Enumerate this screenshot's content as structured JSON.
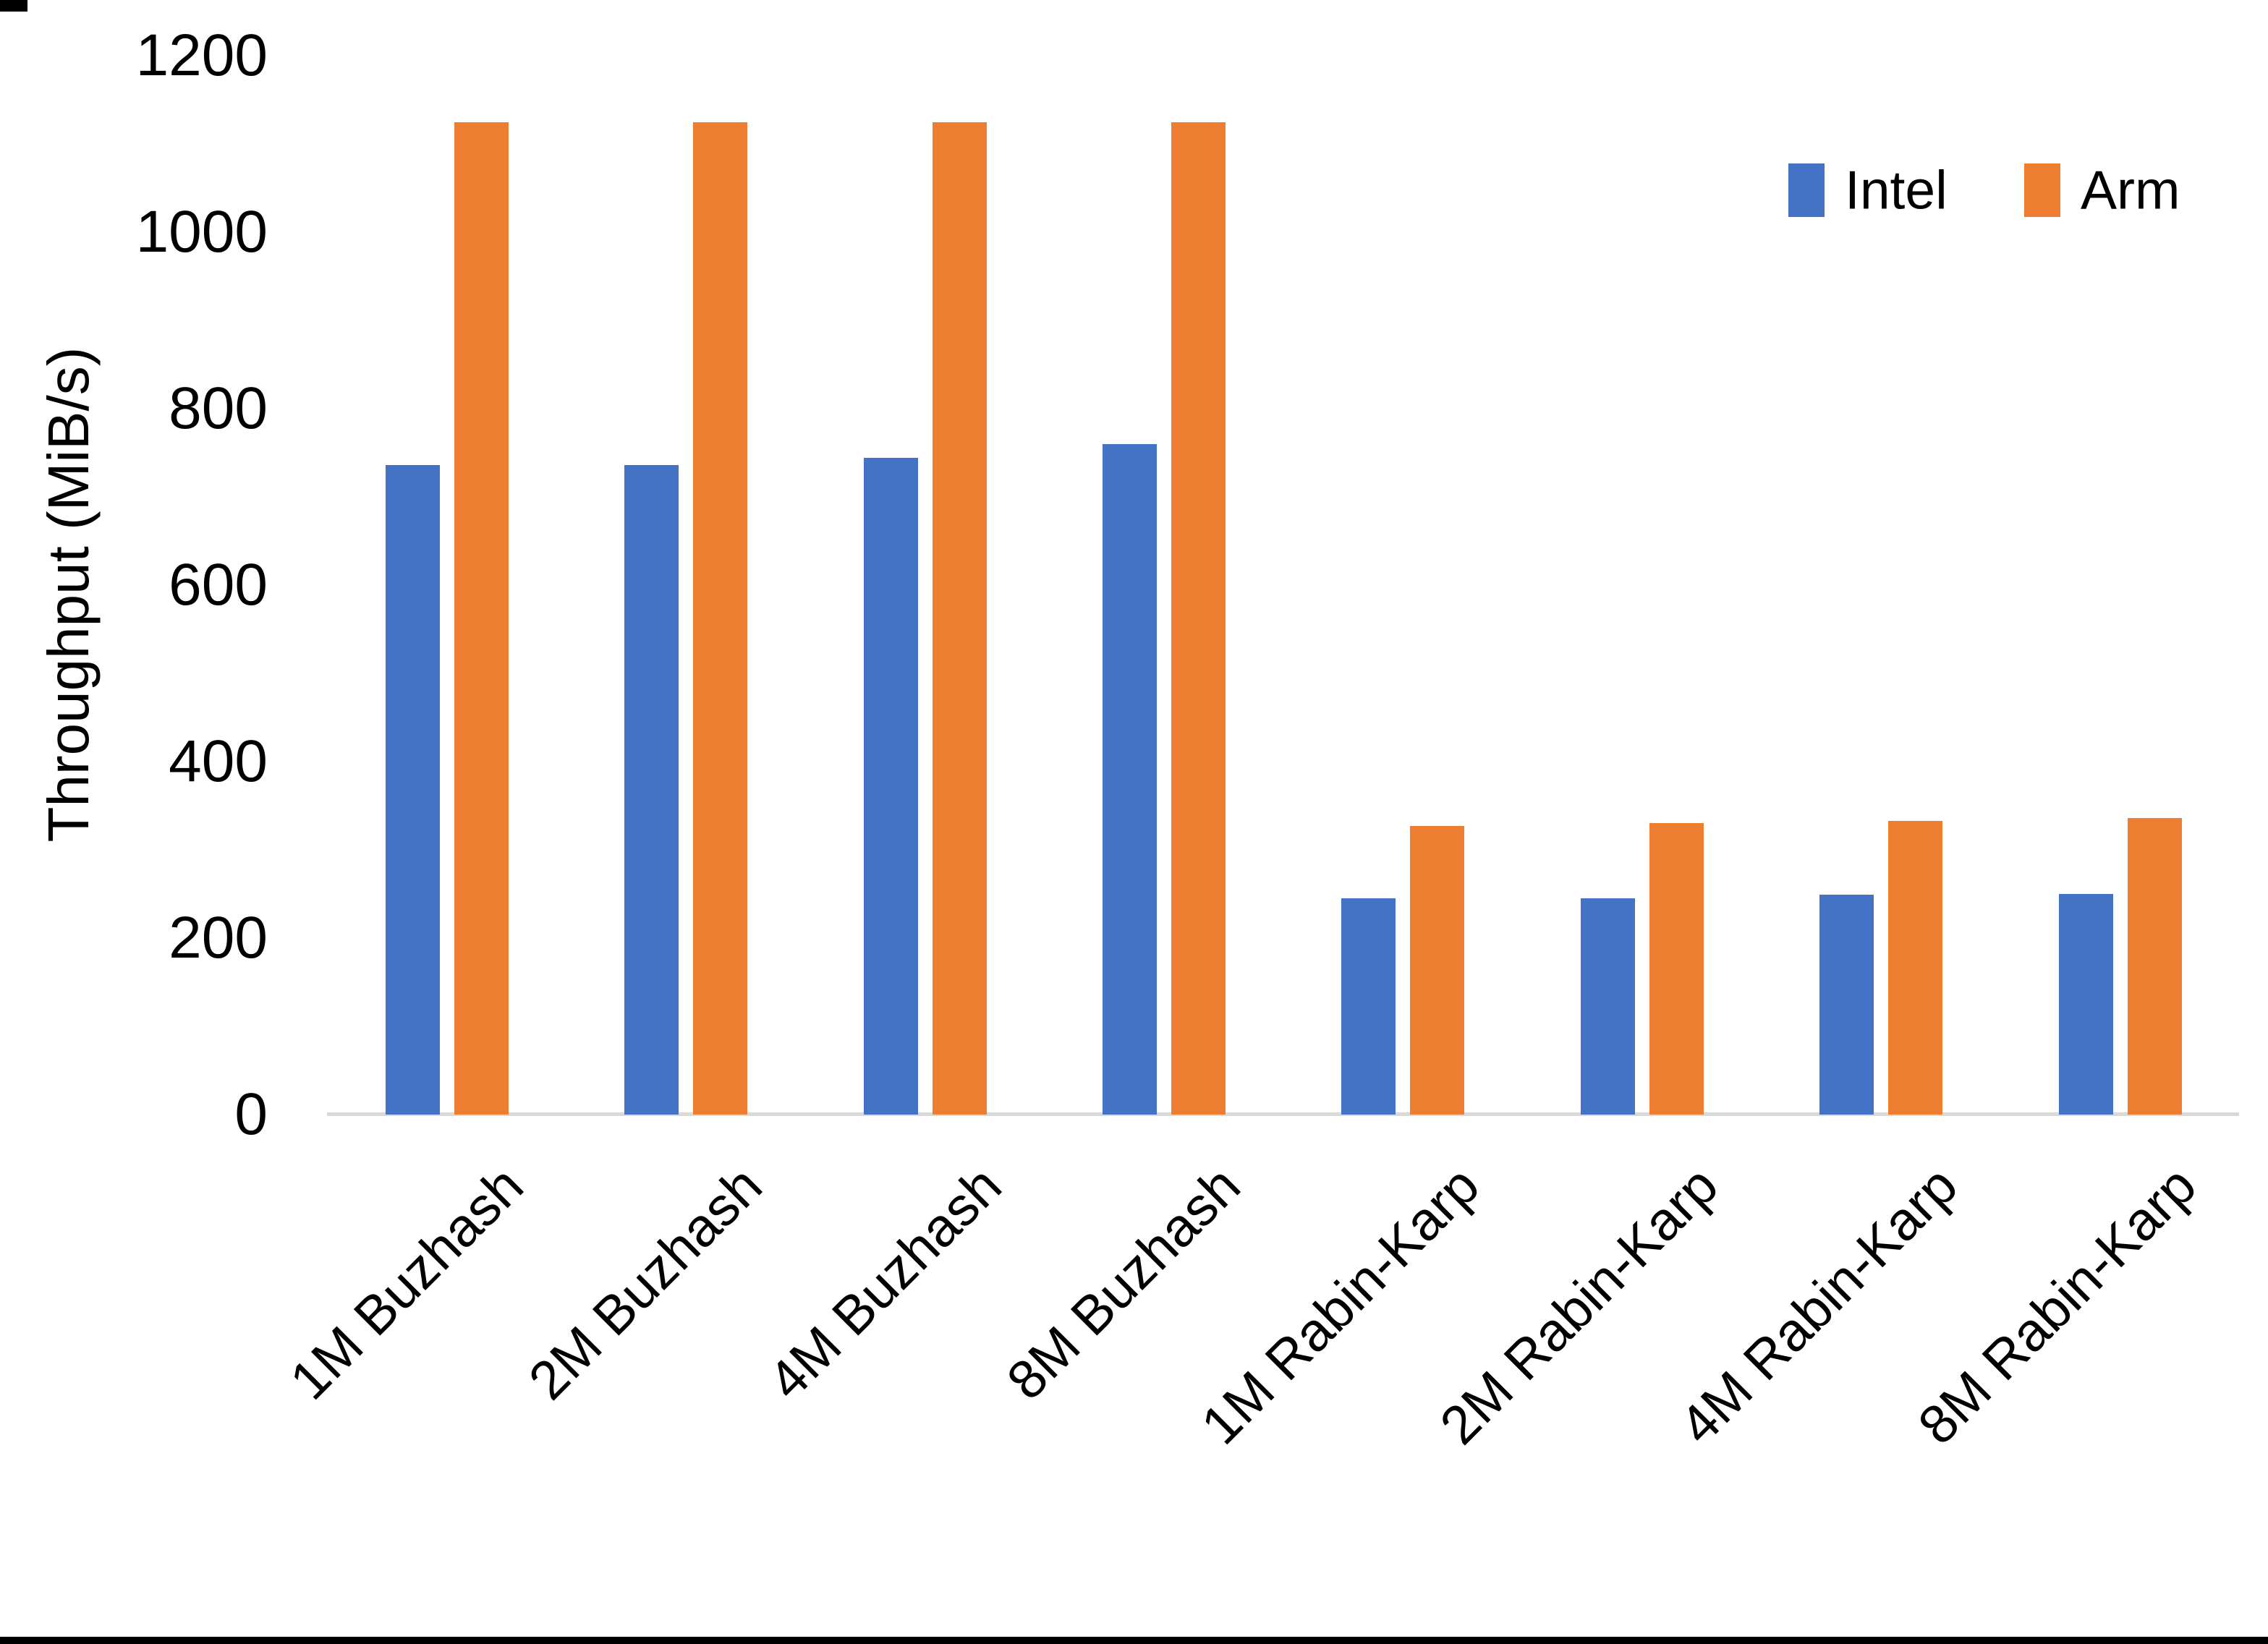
{
  "chart_data": {
    "type": "bar",
    "title": "",
    "ylabel": "Throughput (MiB/s)",
    "xlabel": "",
    "ylim": [
      0,
      1200
    ],
    "yticks": [
      0,
      200,
      400,
      600,
      800,
      1000,
      1200
    ],
    "grid": false,
    "legend_position": "top-right",
    "categories": [
      "1M Buzhash",
      "2M Buzhash",
      "4M Buzhash",
      "8M Buzhash",
      "1M Rabin-Karp",
      "2M Rabin-Karp",
      "4M Rabin-Karp",
      "8M Rabin-Karp"
    ],
    "series": [
      {
        "name": "Intel",
        "color": "#4472C4",
        "values": [
          736,
          736,
          744,
          760,
          245,
          245,
          249,
          250
        ]
      },
      {
        "name": "Arm",
        "color": "#ED7D31",
        "values": [
          1125,
          1125,
          1125,
          1125,
          327,
          330,
          333,
          336
        ]
      }
    ]
  }
}
